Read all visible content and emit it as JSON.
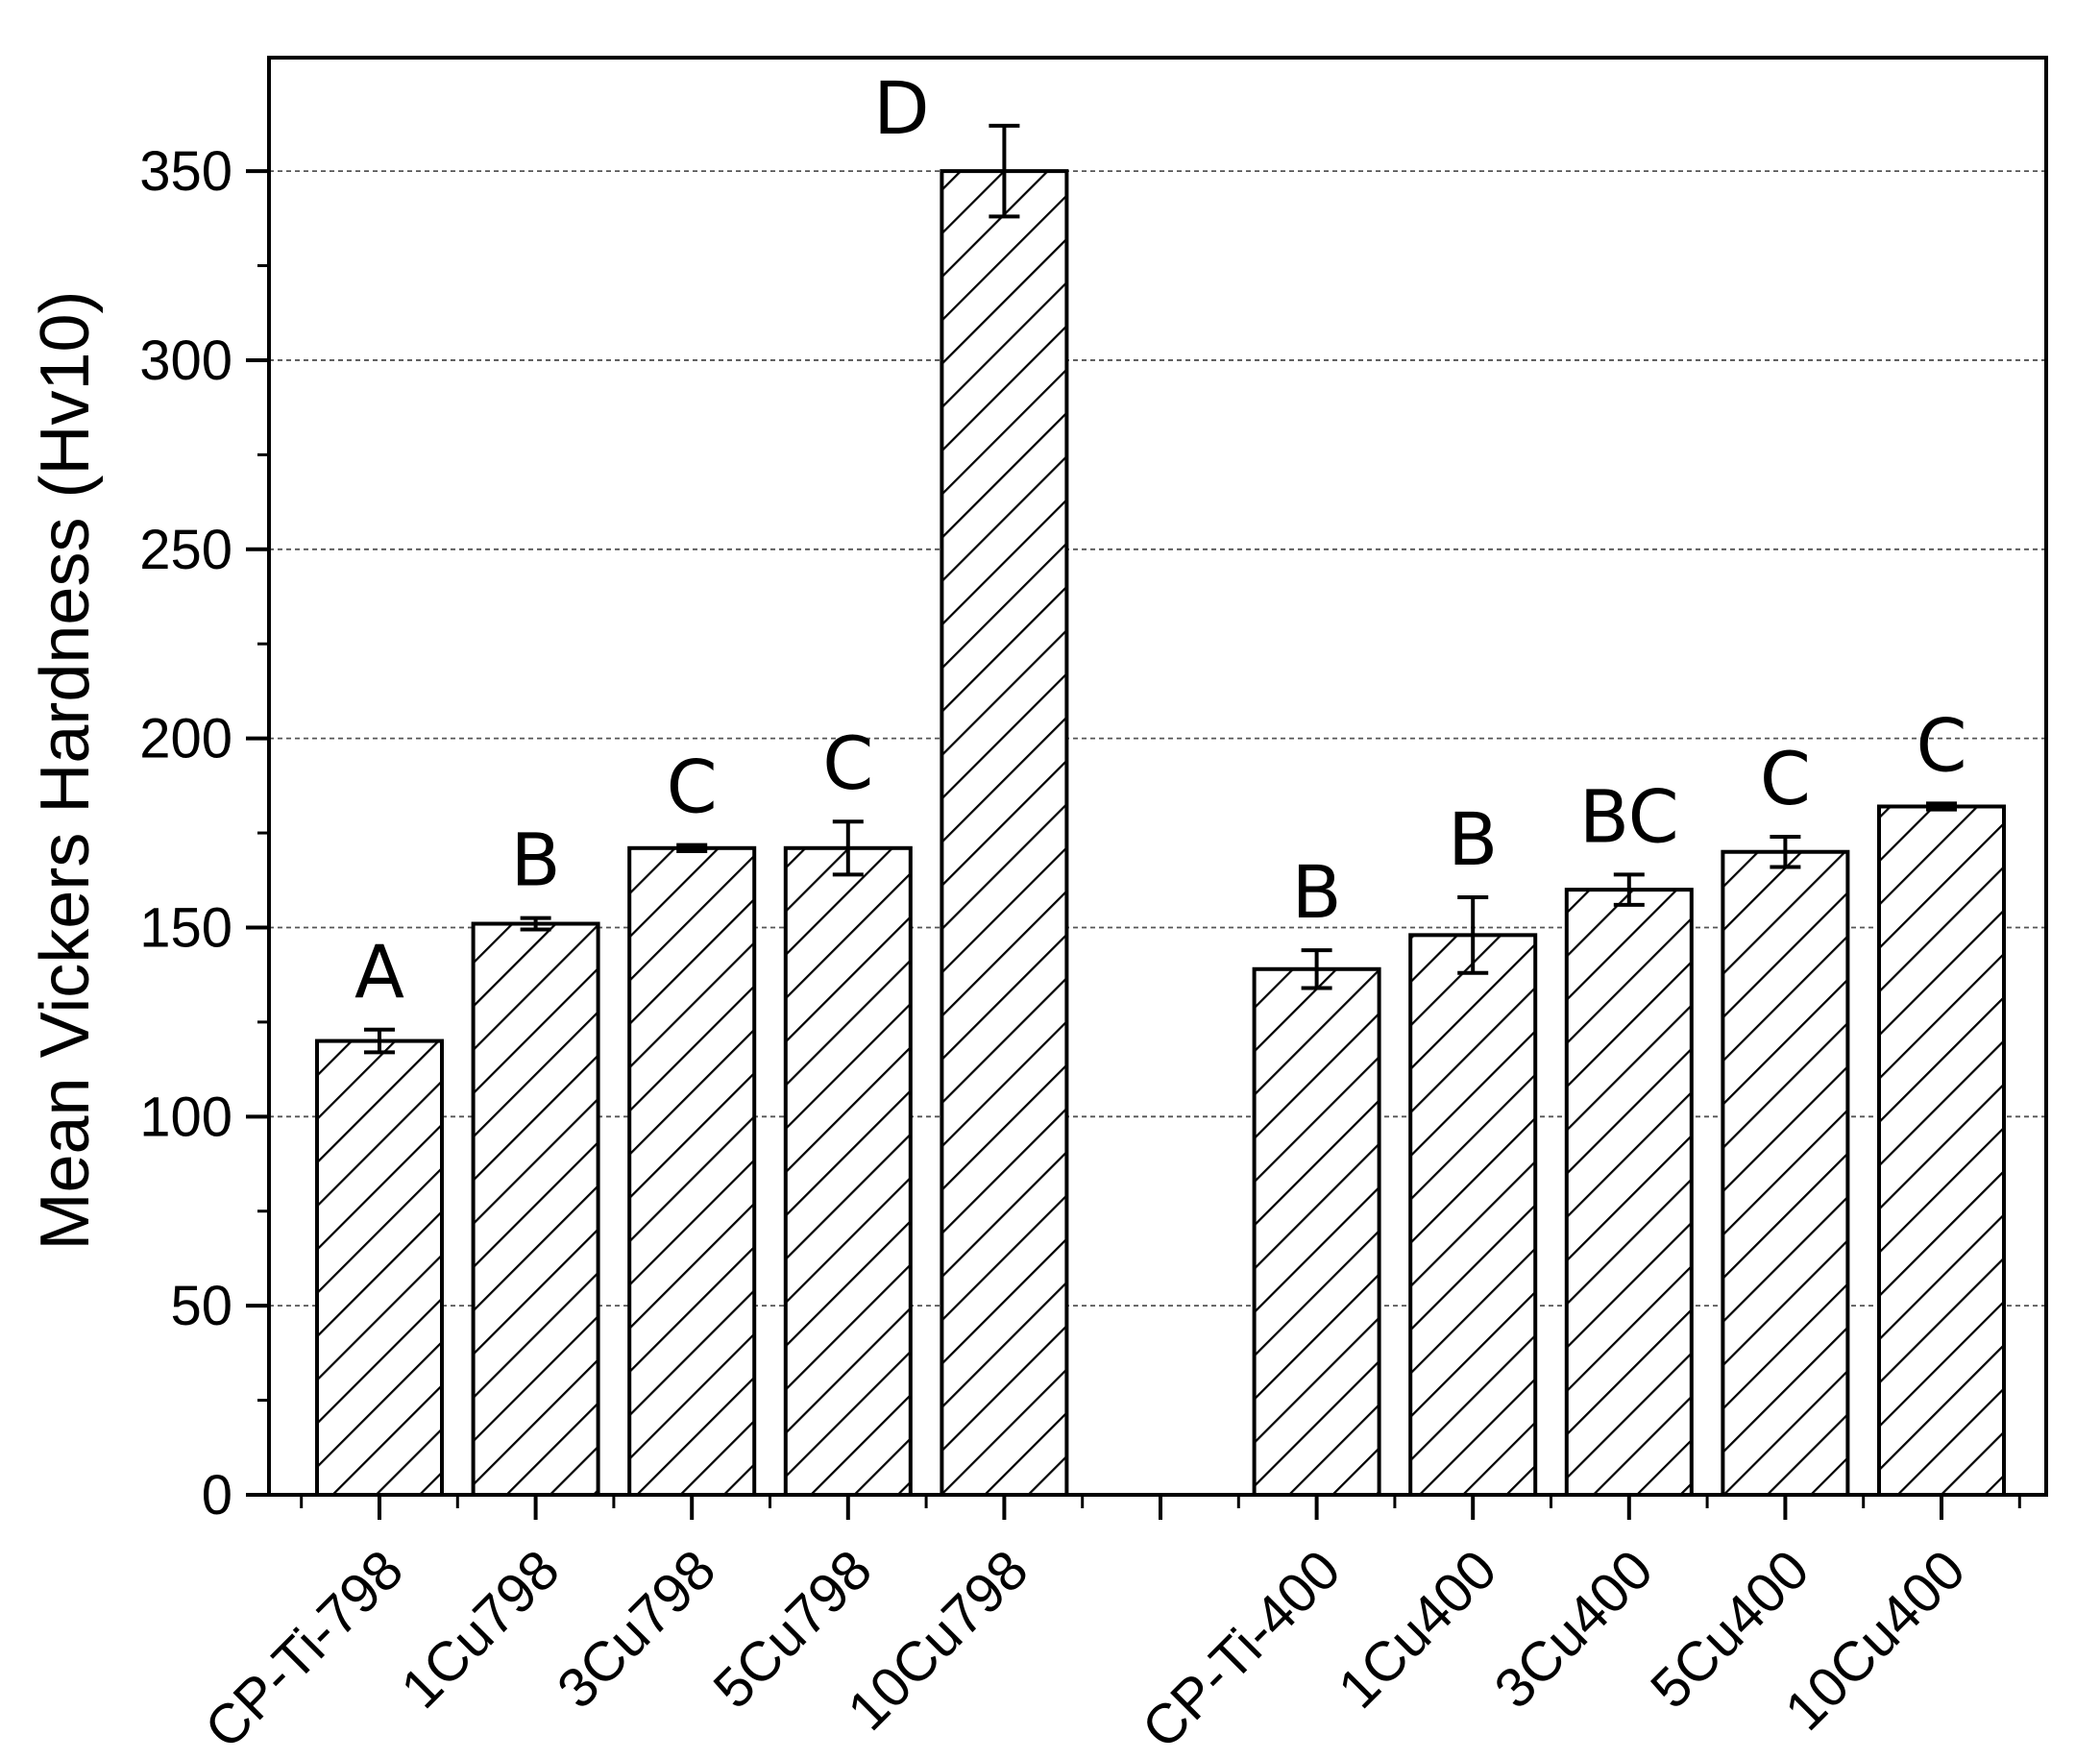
{
  "chart_data": {
    "type": "bar",
    "title": "",
    "xlabel": "",
    "ylabel": "Mean Vickers Hardness (Hv10)",
    "ylim": [
      0,
      380
    ],
    "yticks": [
      0,
      50,
      100,
      150,
      200,
      250,
      300,
      350
    ],
    "grid": "horizontal dashed",
    "bar_fill": "diagonal hatch",
    "colors": {
      "bar_fill": "#ffffff",
      "hatch": "#000000",
      "bar_edge": "#000000",
      "grid": "#555555"
    },
    "categories": [
      "CP-Ti-798",
      "1Cu798",
      "3Cu798",
      "5Cu798",
      "10Cu798",
      "",
      "CP-Ti-400",
      "1Cu400",
      "3Cu400",
      "5Cu400",
      "10Cu400"
    ],
    "values": [
      120,
      151,
      171,
      171,
      350,
      null,
      139,
      148,
      160,
      170,
      182
    ],
    "errors": [
      3,
      1.5,
      0.8,
      7,
      12,
      null,
      5,
      10,
      4,
      4,
      0.8
    ],
    "significance_letters": [
      "A",
      "B",
      "C",
      "C",
      "D",
      "",
      "B",
      "B",
      "BC",
      "C",
      "C"
    ]
  }
}
